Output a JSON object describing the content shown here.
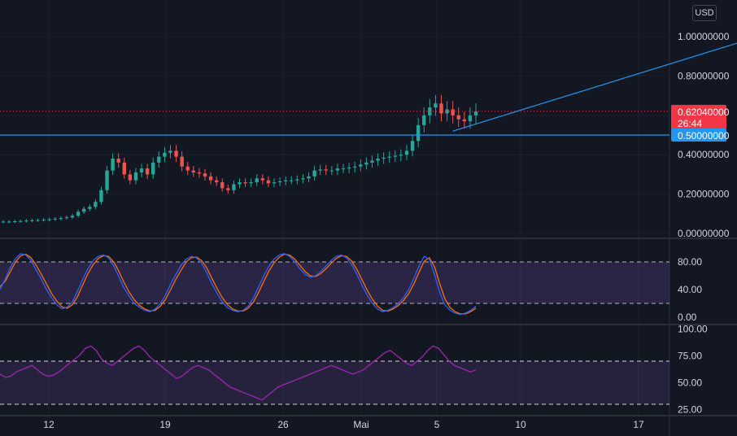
{
  "currency_button": "USD",
  "price_tag": {
    "value": "0.62040000",
    "countdown": "26:44",
    "color": "#f23645"
  },
  "level_tag": {
    "value": "0.50000000",
    "color": "#2196f3"
  },
  "colors": {
    "up": "#26a69a",
    "down": "#ef5350",
    "stoch_k": "#2962ff",
    "stoch_d": "#ff6d00",
    "rsi": "#7e57c2",
    "band": "#7e57c2",
    "grid": "#1e222d"
  },
  "chart_data": [
    {
      "type": "candlestick",
      "name": "price",
      "y_ticks": [
        "1.00000000",
        "0.80000000",
        "0.40000000",
        "0.20000000",
        "0.00000000"
      ],
      "ylim": [
        0,
        1.0
      ],
      "close_series": [
        0.06,
        0.06,
        0.062,
        0.063,
        0.065,
        0.067,
        0.068,
        0.07,
        0.072,
        0.075,
        0.078,
        0.082,
        0.09,
        0.11,
        0.125,
        0.135,
        0.16,
        0.22,
        0.32,
        0.38,
        0.36,
        0.3,
        0.27,
        0.31,
        0.33,
        0.3,
        0.36,
        0.39,
        0.41,
        0.42,
        0.39,
        0.34,
        0.32,
        0.31,
        0.305,
        0.29,
        0.27,
        0.26,
        0.23,
        0.22,
        0.25,
        0.26,
        0.255,
        0.26,
        0.28,
        0.27,
        0.255,
        0.26,
        0.265,
        0.27,
        0.27,
        0.275,
        0.28,
        0.29,
        0.32,
        0.325,
        0.32,
        0.32,
        0.33,
        0.33,
        0.335,
        0.34,
        0.35,
        0.36,
        0.37,
        0.38,
        0.385,
        0.39,
        0.395,
        0.4,
        0.42,
        0.47,
        0.55,
        0.6,
        0.64,
        0.66,
        0.61,
        0.63,
        0.6,
        0.58,
        0.57,
        0.6,
        0.62
      ],
      "horizontal_line": 0.5,
      "current_price": 0.6204,
      "trend_line": {
        "from": [
          78,
          0.52
        ],
        "to": [
          131,
          1.0
        ]
      },
      "x_ticks": [
        "12",
        "19",
        "26",
        "Mai",
        "5",
        "10",
        "17"
      ]
    },
    {
      "type": "line",
      "name": "stochastic",
      "y_ticks": [
        "80.00",
        "40.00",
        "0.00"
      ],
      "ylim": [
        -5,
        105
      ],
      "band": [
        20,
        80
      ],
      "series_k": [
        40,
        55,
        72,
        85,
        92,
        90,
        82,
        68,
        55,
        40,
        28,
        18,
        12,
        15,
        22,
        38,
        55,
        70,
        82,
        88,
        90,
        86,
        74,
        58,
        42,
        30,
        20,
        14,
        10,
        8,
        12,
        20,
        32,
        48,
        62,
        75,
        84,
        88,
        86,
        78,
        64,
        48,
        34,
        22,
        14,
        10,
        8,
        10,
        16,
        28,
        44,
        60,
        74,
        84,
        90,
        92,
        88,
        80,
        70,
        62,
        58,
        60,
        66,
        74,
        82,
        88,
        90,
        86,
        76,
        62,
        46,
        32,
        20,
        12,
        8,
        10,
        14,
        20,
        28,
        40,
        56,
        74,
        88,
        84,
        62,
        36,
        18,
        10,
        6,
        4,
        6,
        10,
        16
      ],
      "series_d": [
        44,
        52,
        66,
        80,
        89,
        91,
        86,
        75,
        62,
        48,
        34,
        23,
        15,
        13,
        18,
        30,
        47,
        63,
        76,
        85,
        89,
        88,
        80,
        66,
        50,
        36,
        25,
        17,
        12,
        9,
        10,
        16,
        26,
        40,
        55,
        68,
        80,
        86,
        87,
        82,
        71,
        56,
        41,
        28,
        18,
        12,
        9,
        9,
        13,
        22,
        36,
        52,
        67,
        79,
        87,
        91,
        90,
        84,
        75,
        66,
        60,
        59,
        63,
        70,
        78,
        85,
        89,
        88,
        81,
        69,
        54,
        39,
        26,
        16,
        10,
        9,
        12,
        17,
        24,
        34,
        48,
        65,
        81,
        86,
        73,
        49,
        27,
        14,
        8,
        5,
        5,
        8,
        13
      ]
    },
    {
      "type": "line",
      "name": "rsi",
      "y_ticks": [
        "100.00",
        "75.00",
        "50.00",
        "25.00"
      ],
      "ylim": [
        20,
        100
      ],
      "band": [
        30,
        70
      ],
      "values": [
        58,
        55,
        56,
        60,
        62,
        64,
        66,
        62,
        58,
        56,
        57,
        60,
        64,
        68,
        72,
        76,
        82,
        84,
        80,
        72,
        68,
        66,
        70,
        74,
        78,
        82,
        84,
        80,
        74,
        70,
        66,
        62,
        58,
        54,
        56,
        60,
        64,
        66,
        64,
        62,
        58,
        54,
        50,
        46,
        44,
        42,
        40,
        38,
        36,
        34,
        38,
        42,
        46,
        48,
        50,
        52,
        54,
        56,
        58,
        60,
        62,
        64,
        66,
        64,
        62,
        60,
        58,
        60,
        62,
        66,
        70,
        74,
        78,
        80,
        76,
        72,
        68,
        66,
        70,
        74,
        80,
        84,
        82,
        76,
        70,
        66,
        64,
        62,
        60,
        62
      ]
    }
  ]
}
